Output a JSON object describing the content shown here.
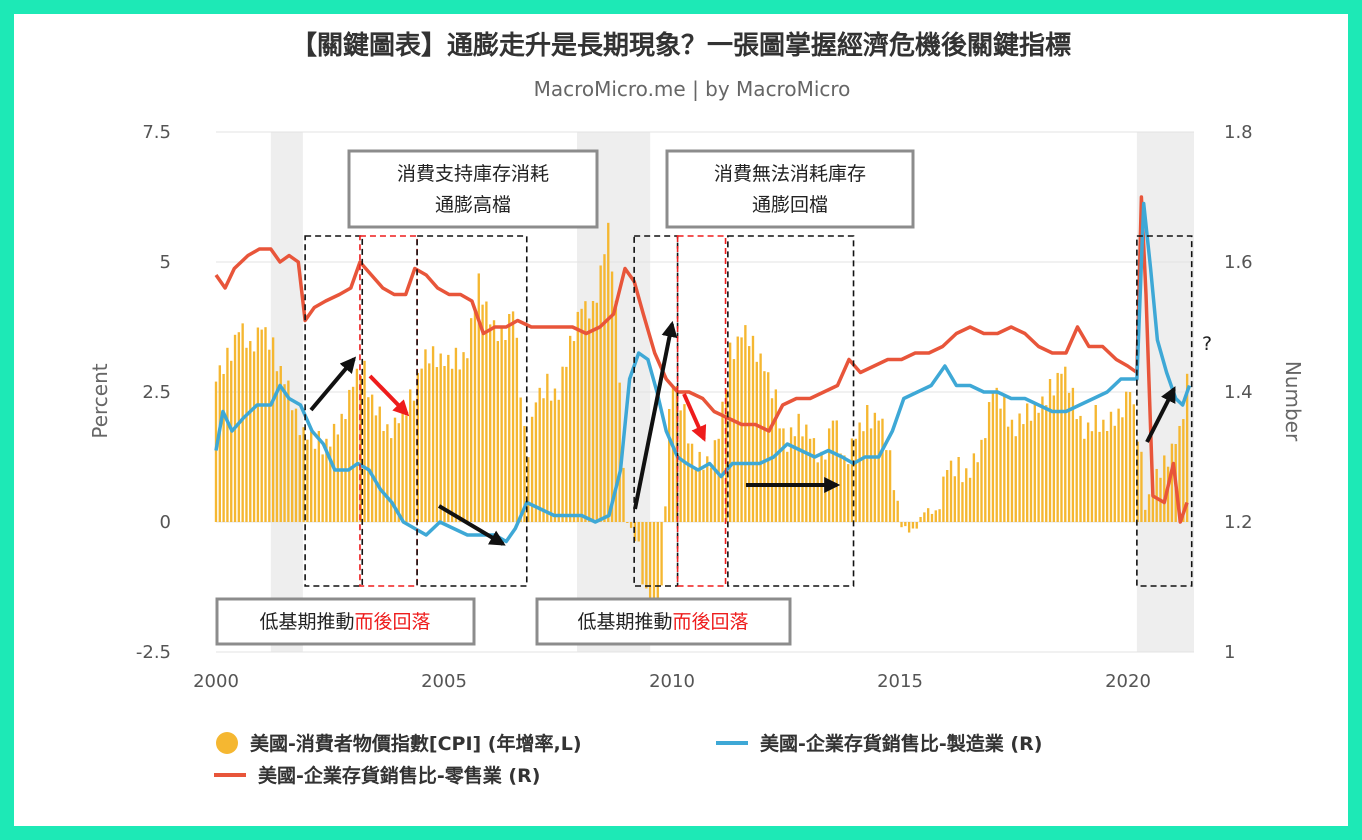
{
  "chart_data": {
    "type": "bar+line",
    "title": "【關鍵圖表】通膨走升是長期現象？一張圖掌握經濟危機後關鍵指標",
    "subtitle": "MacroMicro.me | by MacroMicro",
    "x_ticks": [
      "2000",
      "2005",
      "2010",
      "2015",
      "2020"
    ],
    "y_left": {
      "label": "Percent",
      "ticks": [
        "7.5",
        "5",
        "2.5",
        "0",
        "-2.5"
      ],
      "range": [
        -2.5,
        7.5
      ]
    },
    "y_right": {
      "label": "Number",
      "ticks": [
        "1.8",
        "1.6",
        "1.4",
        "1.2",
        "1"
      ],
      "range": [
        1.0,
        1.8
      ]
    },
    "x_range": [
      2000,
      2021.4
    ],
    "recession_shading": [
      [
        2001.2,
        2001.9
      ],
      [
        2007.9,
        2009.5
      ],
      [
        2020.15,
        2021.4
      ]
    ],
    "series": [
      {
        "name": "美國-消費者物價指數[CPI] (年增率,L)",
        "type": "bar",
        "axis": "left",
        "color": "#f5b731",
        "points": [
          [
            2000.0,
            2.7
          ],
          [
            2000.25,
            3.1
          ],
          [
            2000.5,
            3.7
          ],
          [
            2000.75,
            3.4
          ],
          [
            2001.0,
            3.7
          ],
          [
            2001.25,
            3.3
          ],
          [
            2001.5,
            2.7
          ],
          [
            2001.75,
            2.1
          ],
          [
            2001.95,
            1.6
          ],
          [
            2002.25,
            1.5
          ],
          [
            2002.5,
            1.5
          ],
          [
            2002.75,
            2.0
          ],
          [
            2003.0,
            2.6
          ],
          [
            2003.2,
            3.0
          ],
          [
            2003.5,
            2.1
          ],
          [
            2003.75,
            1.8
          ],
          [
            2004.0,
            1.9
          ],
          [
            2004.25,
            2.3
          ],
          [
            2004.5,
            3.0
          ],
          [
            2004.75,
            3.3
          ],
          [
            2005.0,
            3.0
          ],
          [
            2005.25,
            3.1
          ],
          [
            2005.5,
            3.2
          ],
          [
            2005.75,
            4.7
          ],
          [
            2006.0,
            3.8
          ],
          [
            2006.25,
            3.5
          ],
          [
            2006.5,
            4.1
          ],
          [
            2006.8,
            1.3
          ],
          [
            2007.0,
            2.3
          ],
          [
            2007.25,
            2.6
          ],
          [
            2007.5,
            2.4
          ],
          [
            2007.75,
            3.5
          ],
          [
            2008.0,
            4.1
          ],
          [
            2008.25,
            4.0
          ],
          [
            2008.45,
            5.0
          ],
          [
            2008.6,
            5.6
          ],
          [
            2008.8,
            3.7
          ],
          [
            2008.95,
            0.1
          ],
          [
            2009.2,
            -0.4
          ],
          [
            2009.4,
            -1.3
          ],
          [
            2009.55,
            -2.0
          ],
          [
            2009.75,
            -1.3
          ],
          [
            2009.95,
            2.7
          ],
          [
            2010.2,
            2.2
          ],
          [
            2010.5,
            1.1
          ],
          [
            2010.8,
            1.2
          ],
          [
            2011.0,
            1.6
          ],
          [
            2011.25,
            3.2
          ],
          [
            2011.5,
            3.6
          ],
          [
            2011.75,
            3.5
          ],
          [
            2012.0,
            2.9
          ],
          [
            2012.25,
            2.3
          ],
          [
            2012.5,
            1.4
          ],
          [
            2012.75,
            2.0
          ],
          [
            2013.0,
            1.6
          ],
          [
            2013.25,
            1.1
          ],
          [
            2013.5,
            2.0
          ],
          [
            2013.75,
            1.2
          ],
          [
            2014.0,
            1.6
          ],
          [
            2014.25,
            2.0
          ],
          [
            2014.5,
            2.0
          ],
          [
            2014.75,
            1.3
          ],
          [
            2015.0,
            -0.1
          ],
          [
            2015.25,
            -0.2
          ],
          [
            2015.5,
            0.2
          ],
          [
            2015.75,
            0.2
          ],
          [
            2016.0,
            1.0
          ],
          [
            2016.25,
            1.0
          ],
          [
            2016.5,
            0.9
          ],
          [
            2016.75,
            1.5
          ],
          [
            2017.0,
            2.5
          ],
          [
            2017.25,
            2.2
          ],
          [
            2017.5,
            1.7
          ],
          [
            2017.75,
            2.2
          ],
          [
            2018.0,
            2.1
          ],
          [
            2018.25,
            2.5
          ],
          [
            2018.5,
            2.9
          ],
          [
            2018.75,
            2.5
          ],
          [
            2019.0,
            1.6
          ],
          [
            2019.25,
            2.0
          ],
          [
            2019.5,
            1.8
          ],
          [
            2019.75,
            2.1
          ],
          [
            2020.0,
            2.5
          ],
          [
            2020.2,
            1.5
          ],
          [
            2020.35,
            0.3
          ],
          [
            2020.5,
            0.6
          ],
          [
            2020.75,
            1.2
          ],
          [
            2020.95,
            1.4
          ],
          [
            2021.1,
            1.7
          ],
          [
            2021.25,
            2.6
          ]
        ]
      },
      {
        "name": "美國-企業存貨銷售比-製造業 (R)",
        "type": "line",
        "axis": "right",
        "color": "#3ea8d6",
        "points": [
          [
            2000.0,
            1.31
          ],
          [
            2000.15,
            1.37
          ],
          [
            2000.35,
            1.34
          ],
          [
            2000.6,
            1.36
          ],
          [
            2000.9,
            1.38
          ],
          [
            2001.2,
            1.38
          ],
          [
            2001.4,
            1.41
          ],
          [
            2001.6,
            1.39
          ],
          [
            2001.85,
            1.38
          ],
          [
            2002.1,
            1.34
          ],
          [
            2002.35,
            1.32
          ],
          [
            2002.6,
            1.28
          ],
          [
            2002.9,
            1.28
          ],
          [
            2003.1,
            1.29
          ],
          [
            2003.35,
            1.28
          ],
          [
            2003.6,
            1.25
          ],
          [
            2003.85,
            1.23
          ],
          [
            2004.1,
            1.2
          ],
          [
            2004.35,
            1.19
          ],
          [
            2004.6,
            1.18
          ],
          [
            2004.9,
            1.2
          ],
          [
            2005.2,
            1.19
          ],
          [
            2005.5,
            1.18
          ],
          [
            2005.8,
            1.18
          ],
          [
            2006.1,
            1.18
          ],
          [
            2006.35,
            1.17
          ],
          [
            2006.55,
            1.19
          ],
          [
            2006.8,
            1.23
          ],
          [
            2007.1,
            1.22
          ],
          [
            2007.4,
            1.21
          ],
          [
            2007.7,
            1.21
          ],
          [
            2008.0,
            1.21
          ],
          [
            2008.3,
            1.2
          ],
          [
            2008.6,
            1.21
          ],
          [
            2008.85,
            1.28
          ],
          [
            2009.05,
            1.42
          ],
          [
            2009.25,
            1.46
          ],
          [
            2009.45,
            1.45
          ],
          [
            2009.65,
            1.4
          ],
          [
            2009.85,
            1.34
          ],
          [
            2010.1,
            1.3
          ],
          [
            2010.3,
            1.29
          ],
          [
            2010.55,
            1.28
          ],
          [
            2010.8,
            1.29
          ],
          [
            2011.05,
            1.27
          ],
          [
            2011.3,
            1.29
          ],
          [
            2011.6,
            1.29
          ],
          [
            2011.9,
            1.29
          ],
          [
            2012.2,
            1.3
          ],
          [
            2012.5,
            1.32
          ],
          [
            2012.8,
            1.31
          ],
          [
            2013.1,
            1.3
          ],
          [
            2013.4,
            1.31
          ],
          [
            2013.7,
            1.3
          ],
          [
            2013.95,
            1.29
          ],
          [
            2014.2,
            1.3
          ],
          [
            2014.5,
            1.3
          ],
          [
            2014.8,
            1.34
          ],
          [
            2015.05,
            1.39
          ],
          [
            2015.35,
            1.4
          ],
          [
            2015.65,
            1.41
          ],
          [
            2015.95,
            1.44
          ],
          [
            2016.2,
            1.41
          ],
          [
            2016.5,
            1.41
          ],
          [
            2016.8,
            1.4
          ],
          [
            2017.1,
            1.4
          ],
          [
            2017.4,
            1.39
          ],
          [
            2017.7,
            1.39
          ],
          [
            2018.0,
            1.38
          ],
          [
            2018.3,
            1.37
          ],
          [
            2018.6,
            1.37
          ],
          [
            2018.9,
            1.38
          ],
          [
            2019.2,
            1.39
          ],
          [
            2019.5,
            1.4
          ],
          [
            2019.8,
            1.42
          ],
          [
            2020.0,
            1.42
          ],
          [
            2020.15,
            1.42
          ],
          [
            2020.3,
            1.69
          ],
          [
            2020.45,
            1.59
          ],
          [
            2020.6,
            1.48
          ],
          [
            2020.8,
            1.43
          ],
          [
            2021.0,
            1.39
          ],
          [
            2021.15,
            1.38
          ],
          [
            2021.3,
            1.41
          ]
        ]
      },
      {
        "name": "美國-企業存貨銷售比-零售業 (R)",
        "type": "line",
        "axis": "right",
        "color": "#e8553a",
        "points": [
          [
            2000.0,
            1.58
          ],
          [
            2000.2,
            1.56
          ],
          [
            2000.4,
            1.59
          ],
          [
            2000.7,
            1.61
          ],
          [
            2000.95,
            1.62
          ],
          [
            2001.2,
            1.62
          ],
          [
            2001.4,
            1.6
          ],
          [
            2001.6,
            1.61
          ],
          [
            2001.8,
            1.6
          ],
          [
            2001.95,
            1.51
          ],
          [
            2002.15,
            1.53
          ],
          [
            2002.4,
            1.54
          ],
          [
            2002.7,
            1.55
          ],
          [
            2002.95,
            1.56
          ],
          [
            2003.15,
            1.6
          ],
          [
            2003.4,
            1.58
          ],
          [
            2003.65,
            1.56
          ],
          [
            2003.9,
            1.55
          ],
          [
            2004.15,
            1.55
          ],
          [
            2004.35,
            1.59
          ],
          [
            2004.6,
            1.58
          ],
          [
            2004.85,
            1.56
          ],
          [
            2005.1,
            1.55
          ],
          [
            2005.35,
            1.55
          ],
          [
            2005.6,
            1.54
          ],
          [
            2005.85,
            1.49
          ],
          [
            2006.1,
            1.5
          ],
          [
            2006.35,
            1.5
          ],
          [
            2006.6,
            1.51
          ],
          [
            2006.9,
            1.5
          ],
          [
            2007.2,
            1.5
          ],
          [
            2007.5,
            1.5
          ],
          [
            2007.8,
            1.5
          ],
          [
            2008.1,
            1.49
          ],
          [
            2008.4,
            1.5
          ],
          [
            2008.7,
            1.52
          ],
          [
            2008.95,
            1.59
          ],
          [
            2009.15,
            1.57
          ],
          [
            2009.35,
            1.52
          ],
          [
            2009.6,
            1.46
          ],
          [
            2009.85,
            1.42
          ],
          [
            2010.1,
            1.4
          ],
          [
            2010.35,
            1.4
          ],
          [
            2010.65,
            1.39
          ],
          [
            2010.9,
            1.37
          ],
          [
            2011.2,
            1.36
          ],
          [
            2011.5,
            1.35
          ],
          [
            2011.8,
            1.35
          ],
          [
            2012.1,
            1.34
          ],
          [
            2012.4,
            1.38
          ],
          [
            2012.7,
            1.39
          ],
          [
            2013.0,
            1.39
          ],
          [
            2013.3,
            1.4
          ],
          [
            2013.6,
            1.41
          ],
          [
            2013.85,
            1.45
          ],
          [
            2014.1,
            1.43
          ],
          [
            2014.4,
            1.44
          ],
          [
            2014.7,
            1.45
          ],
          [
            2015.0,
            1.45
          ],
          [
            2015.3,
            1.46
          ],
          [
            2015.6,
            1.46
          ],
          [
            2015.9,
            1.47
          ],
          [
            2016.2,
            1.49
          ],
          [
            2016.5,
            1.5
          ],
          [
            2016.8,
            1.49
          ],
          [
            2017.1,
            1.49
          ],
          [
            2017.4,
            1.5
          ],
          [
            2017.7,
            1.49
          ],
          [
            2018.0,
            1.47
          ],
          [
            2018.3,
            1.46
          ],
          [
            2018.6,
            1.46
          ],
          [
            2018.85,
            1.5
          ],
          [
            2019.1,
            1.47
          ],
          [
            2019.4,
            1.47
          ],
          [
            2019.7,
            1.45
          ],
          [
            2019.95,
            1.44
          ],
          [
            2020.15,
            1.43
          ],
          [
            2020.25,
            1.7
          ],
          [
            2020.35,
            1.55
          ],
          [
            2020.5,
            1.24
          ],
          [
            2020.75,
            1.23
          ],
          [
            2020.95,
            1.29
          ],
          [
            2021.1,
            1.2
          ],
          [
            2021.25,
            1.23
          ]
        ]
      }
    ],
    "annotations": {
      "box_top_left": [
        "消費支持庫存消耗",
        "通膨高檔"
      ],
      "box_top_right": [
        "消費無法消耗庫存",
        "通膨回檔"
      ],
      "box_bottom_left": {
        "prefix": "低基期推動",
        "emphasis": "而後回落"
      },
      "box_bottom_right": {
        "prefix": "低基期推動",
        "emphasis": "而後回落"
      },
      "question_mark": "?"
    },
    "legend_placement": "bottom"
  },
  "colors": {
    "cpi": "#f5b731",
    "manufacturing": "#3ea8d6",
    "retail": "#e8553a",
    "recession": "#eeeeee",
    "emphasis": "#ee1c1c",
    "frame": "#1de9b6"
  }
}
